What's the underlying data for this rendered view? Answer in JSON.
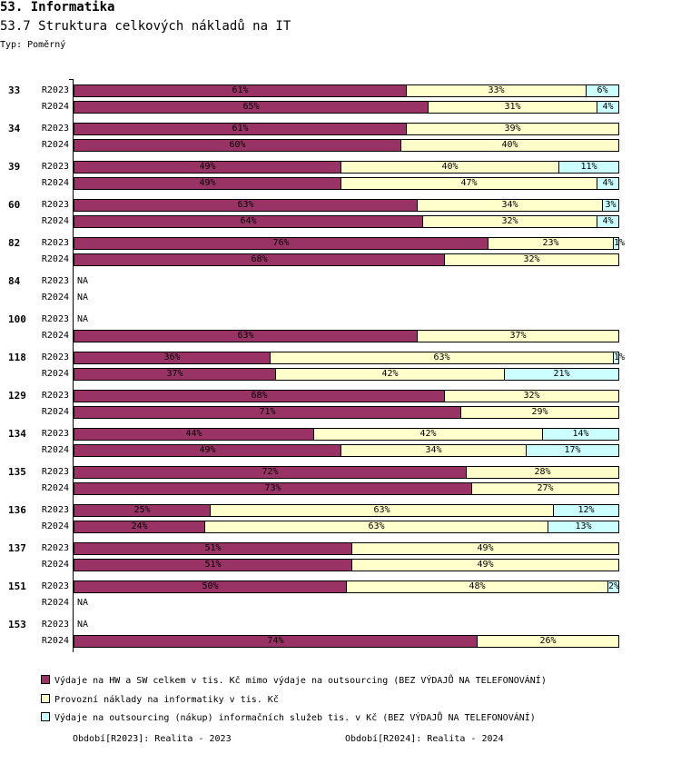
{
  "header": {
    "title": "53. Informatika",
    "subtitle": "53.7 Struktura celkových nákladů na IT",
    "type_label": "Typ: Poměrný"
  },
  "colors": [
    "#993366",
    "#FFFFCC",
    "#CCFFFF"
  ],
  "chart_data": {
    "type": "bar",
    "orientation": "horizontal-stacked-100",
    "title": "53.7 Struktura celkových nákladů na IT",
    "na_label": "NA",
    "series": [
      {
        "name": "Výdaje na HW a SW celkem v tis. Kč mimo výdaje na outsourcing (BEZ VÝDAJŮ NA TELEFONOVÁNÍ)",
        "color": "#993366"
      },
      {
        "name": "Provozní náklady na informatiky v tis. Kč",
        "color": "#FFFFCC"
      },
      {
        "name": "Výdaje na outsourcing (nákup) informačních služeb tis. v Kč (BEZ VÝDAJŮ NA TELEFONOVÁNÍ)",
        "color": "#CCFFFF"
      }
    ],
    "groups": [
      {
        "id": "33",
        "rows": [
          {
            "period": "R2023",
            "values": [
              61,
              33,
              6
            ]
          },
          {
            "period": "R2024",
            "values": [
              65,
              31,
              4
            ]
          }
        ]
      },
      {
        "id": "34",
        "rows": [
          {
            "period": "R2023",
            "values": [
              61,
              39,
              0
            ]
          },
          {
            "period": "R2024",
            "values": [
              60,
              40,
              0
            ]
          }
        ]
      },
      {
        "id": "39",
        "rows": [
          {
            "period": "R2023",
            "values": [
              49,
              40,
              11
            ]
          },
          {
            "period": "R2024",
            "values": [
              49,
              47,
              4
            ]
          }
        ]
      },
      {
        "id": "60",
        "rows": [
          {
            "period": "R2023",
            "values": [
              63,
              34,
              3
            ]
          },
          {
            "period": "R2024",
            "values": [
              64,
              32,
              4
            ]
          }
        ]
      },
      {
        "id": "82",
        "rows": [
          {
            "period": "R2023",
            "values": [
              76,
              23,
              1
            ]
          },
          {
            "period": "R2024",
            "values": [
              68,
              32,
              0
            ]
          }
        ]
      },
      {
        "id": "84",
        "rows": [
          {
            "period": "R2023",
            "values": null
          },
          {
            "period": "R2024",
            "values": null
          }
        ]
      },
      {
        "id": "100",
        "rows": [
          {
            "period": "R2023",
            "values": null
          },
          {
            "period": "R2024",
            "values": [
              63,
              37,
              0
            ]
          }
        ]
      },
      {
        "id": "118",
        "rows": [
          {
            "period": "R2023",
            "values": [
              36,
              63,
              1
            ]
          },
          {
            "period": "R2024",
            "values": [
              37,
              42,
              21
            ]
          }
        ]
      },
      {
        "id": "129",
        "rows": [
          {
            "period": "R2023",
            "values": [
              68,
              32,
              0
            ]
          },
          {
            "period": "R2024",
            "values": [
              71,
              29,
              0
            ]
          }
        ]
      },
      {
        "id": "134",
        "rows": [
          {
            "period": "R2023",
            "values": [
              44,
              42,
              14
            ]
          },
          {
            "period": "R2024",
            "values": [
              49,
              34,
              17
            ]
          }
        ]
      },
      {
        "id": "135",
        "rows": [
          {
            "period": "R2023",
            "values": [
              72,
              28,
              0
            ]
          },
          {
            "period": "R2024",
            "values": [
              73,
              27,
              0
            ]
          }
        ]
      },
      {
        "id": "136",
        "rows": [
          {
            "period": "R2023",
            "values": [
              25,
              63,
              12
            ]
          },
          {
            "period": "R2024",
            "values": [
              24,
              63,
              13
            ]
          }
        ]
      },
      {
        "id": "137",
        "rows": [
          {
            "period": "R2023",
            "values": [
              51,
              49,
              0
            ]
          },
          {
            "period": "R2024",
            "values": [
              51,
              49,
              0
            ]
          }
        ]
      },
      {
        "id": "151",
        "rows": [
          {
            "period": "R2023",
            "values": [
              50,
              48,
              2
            ]
          },
          {
            "period": "R2024",
            "values": null
          }
        ]
      },
      {
        "id": "153",
        "rows": [
          {
            "period": "R2023",
            "values": null
          },
          {
            "period": "R2024",
            "values": [
              74,
              26,
              0
            ]
          }
        ]
      }
    ],
    "xlim": [
      0,
      100
    ]
  },
  "legend": {
    "items": [
      "Výdaje na HW a SW celkem v tis. Kč mimo výdaje na outsourcing (BEZ VÝDAJŮ NA TELEFONOVÁNÍ)",
      "Provozní náklady na informatiky v tis. Kč",
      "Výdaje na outsourcing (nákup) informačních služeb tis. v Kč (BEZ VÝDAJŮ NA TELEFONOVÁNÍ)"
    ]
  },
  "periods": {
    "r2023": "Období[R2023]: Realita - 2023",
    "r2024": "Období[R2024]: Realita - 2024"
  }
}
